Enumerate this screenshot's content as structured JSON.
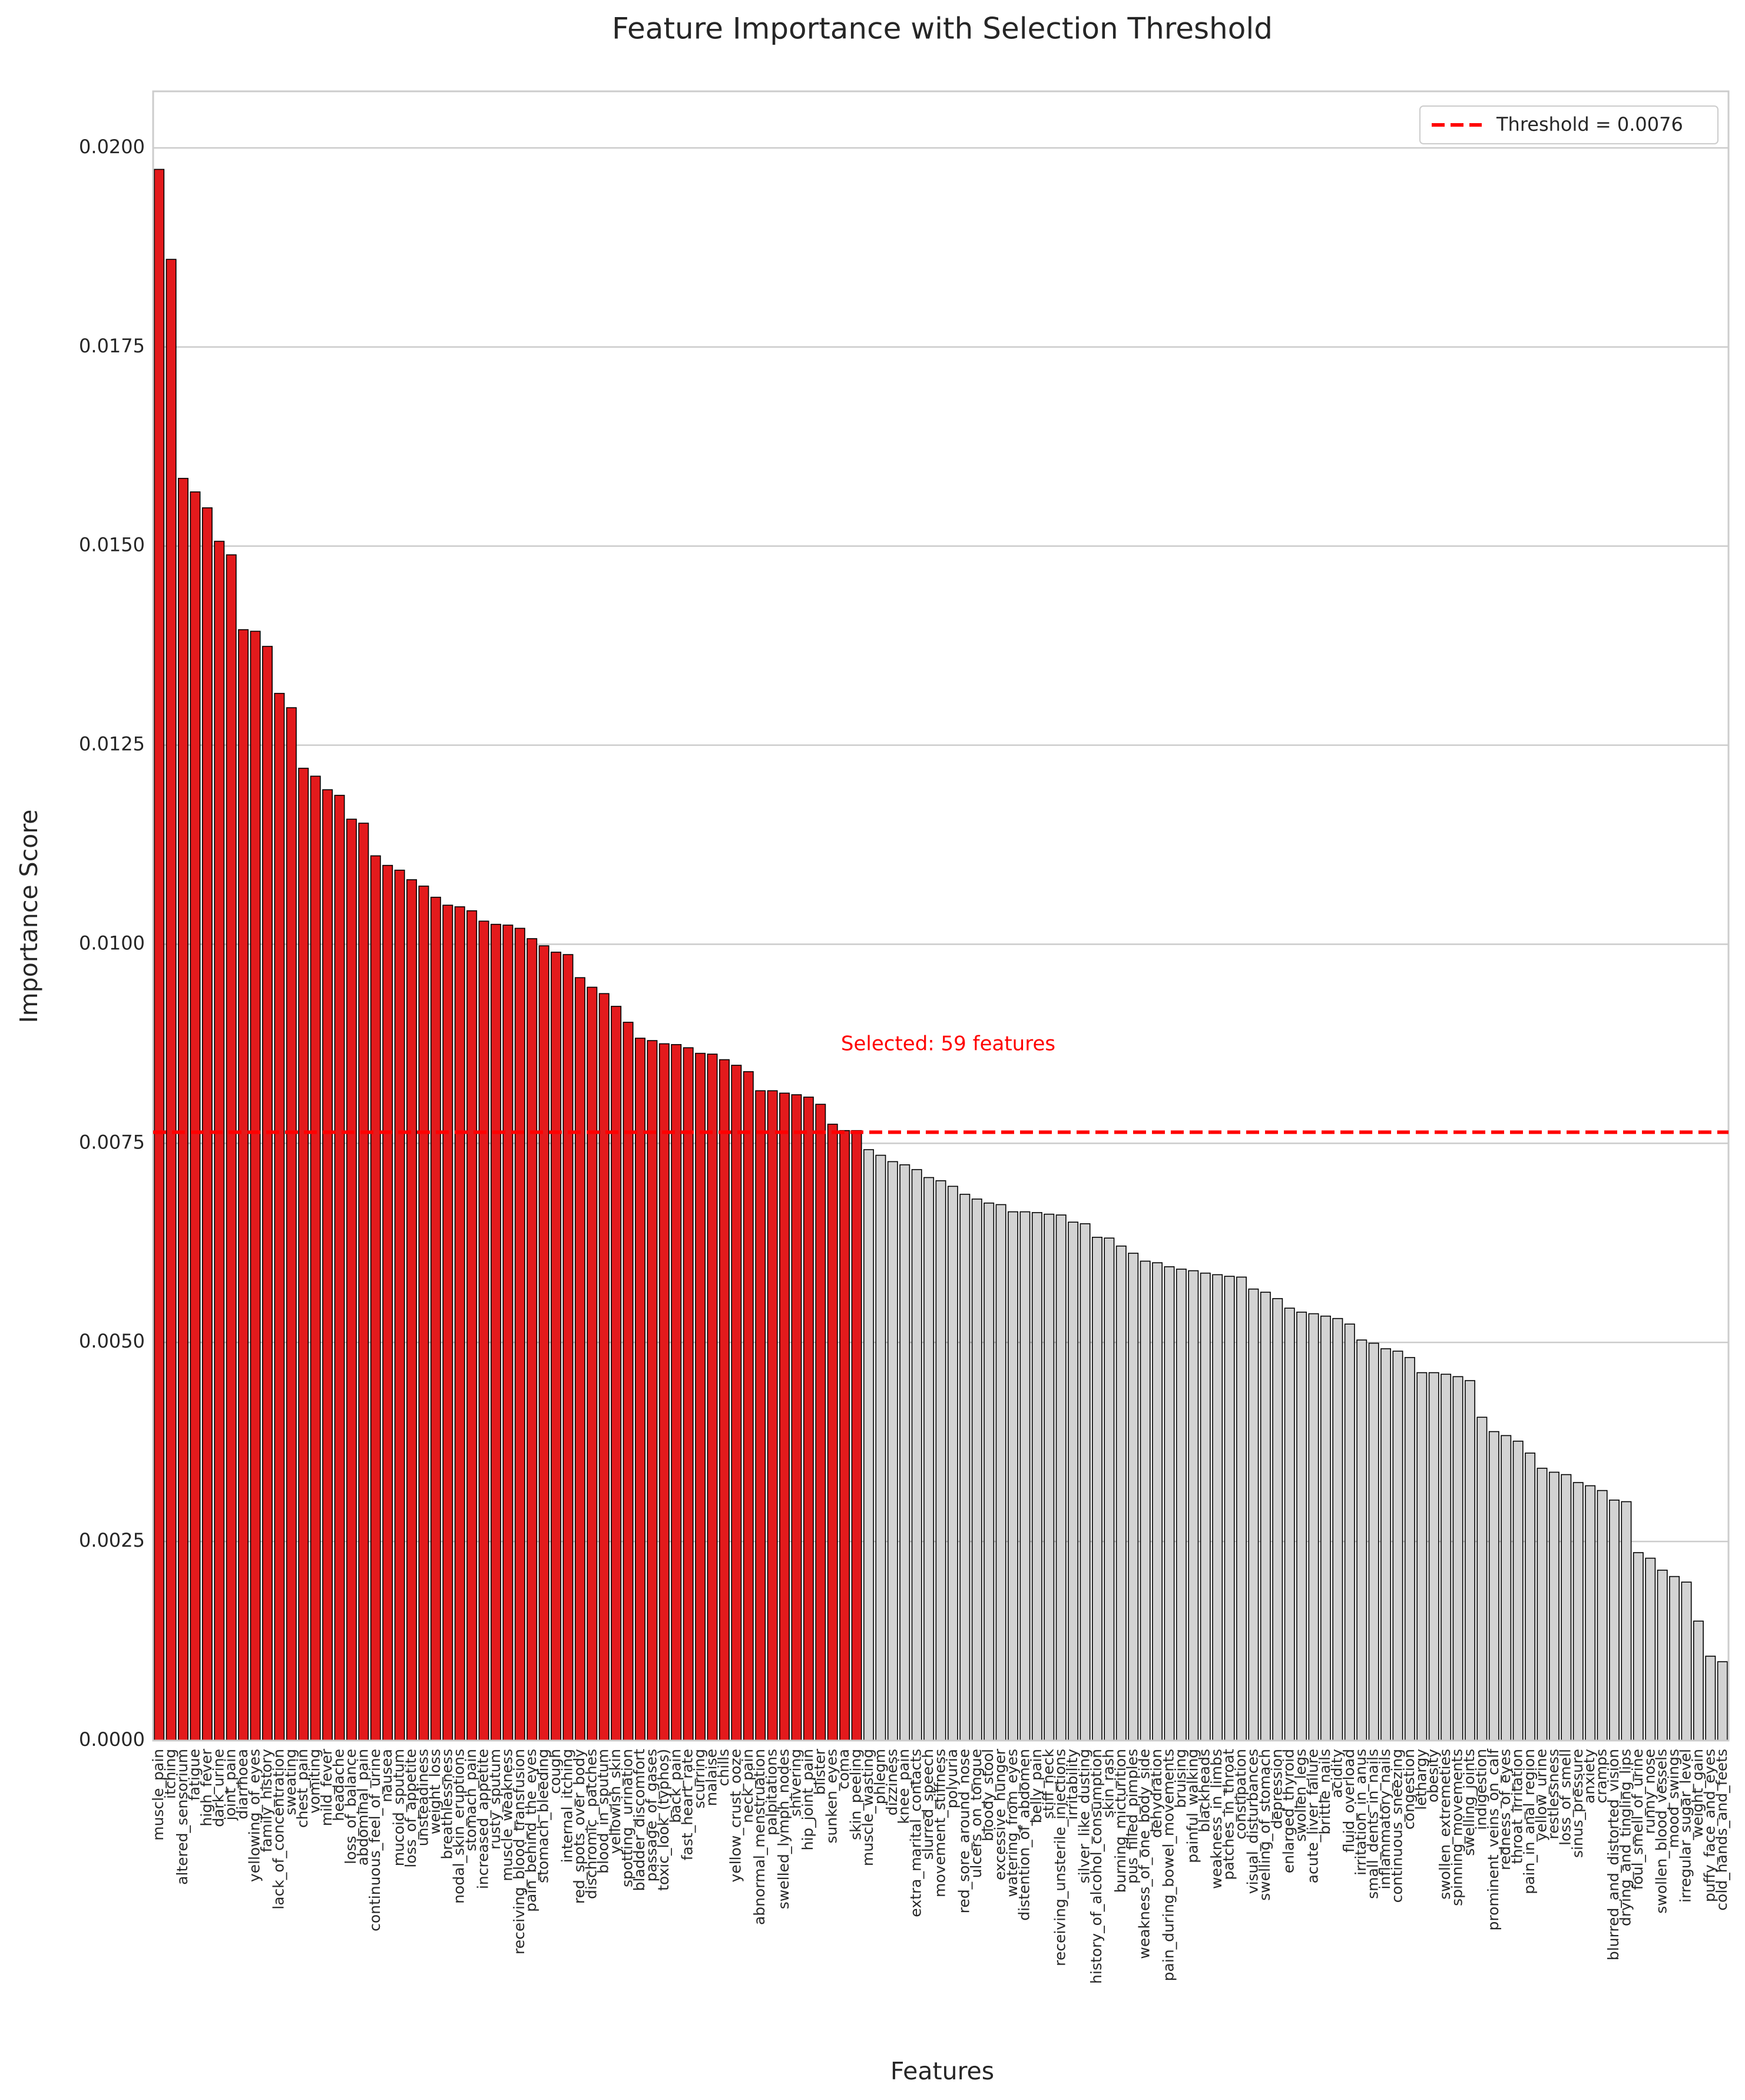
{
  "chart_data": {
    "type": "bar",
    "title": "Feature Importance with Selection Threshold",
    "xlabel": "Features",
    "ylabel": "Importance Score",
    "categories": [
      "muscle_pain",
      "itching",
      "altered_sensorium",
      "fatigue",
      "high_fever",
      "dark_urine",
      "joint_pain",
      "diarrhoea",
      "yellowing_of_eyes",
      "family_history",
      "lack_of_concentration",
      "sweating",
      "chest_pain",
      "vomiting",
      "mild_fever",
      "headache",
      "loss_of_balance",
      "abdominal_pain",
      "continuous_feel_of_urine",
      "nausea",
      "mucoid_sputum",
      "loss_of_appetite",
      "unsteadiness",
      "weight_loss",
      "breathlessness",
      "nodal_skin_eruptions",
      "stomach_pain",
      "increased_appetite",
      "rusty_sputum",
      "muscle_weakness",
      "receiving_blood_transfusion",
      "pain_behind_the_eyes",
      "stomach_bleeding",
      "cough",
      "internal_itching",
      "red_spots_over_body",
      "dischromic _patches",
      "blood_in_sputum",
      "yellowish_skin",
      "spotting_ urination",
      "bladder_discomfort",
      "passage_of_gases",
      "toxic_look_(typhos)",
      "back_pain",
      "fast_heart_rate",
      "scurring",
      "malaise",
      "chills",
      "yellow_crust_ooze",
      "neck_pain",
      "abnormal_menstruation",
      "palpitations",
      "swelled_lymph_nodes",
      "shivering",
      "hip_joint_pain",
      "blister",
      "sunken_eyes",
      "coma",
      "skin_peeling",
      "muscle_wasting",
      "phlegm",
      "dizziness",
      "knee_pain",
      "extra_marital_contacts",
      "slurred_speech",
      "movement_stiffness",
      "polyuria",
      "red_sore_around_nose",
      "ulcers_on_tongue",
      "bloody_stool",
      "excessive_hunger",
      "watering_from_eyes",
      "distention_of_abdomen",
      "belly_pain",
      "stiff_neck",
      "receiving_unsterile_injections",
      "irritability",
      "silver_like_dusting",
      "history_of_alcohol_consumption",
      "skin_rash",
      "burning_micturition",
      "pus_filled_pimples",
      "weakness_of_one_body_side",
      "dehydration",
      "pain_during_bowel_movements",
      "bruising",
      "painful_walking",
      "blackheads",
      "weakness_in_limbs",
      "patches_in_throat",
      "constipation",
      "visual_disturbances",
      "swelling_of_stomach",
      "depression",
      "enlarged_thyroid",
      "swollen_legs",
      "acute_liver_failure",
      "brittle_nails",
      "acidity",
      "fluid_overload",
      "irritation_in_anus",
      "small_dents_in_nails",
      "inflammatory_nails",
      "continuous_sneezing",
      "congestion",
      "lethargy",
      "obesity",
      "swollen_extremeties",
      "spinning_movements",
      "swelling_joints",
      "indigestion",
      "prominent_veins_on_calf",
      "redness_of_eyes",
      "throat_irritation",
      "pain_in_anal_region",
      "yellow_urine",
      "restlessness",
      "loss_of_smell",
      "sinus_pressure",
      "anxiety",
      "cramps",
      "blurred_and_distorted_vision",
      "drying_and_tingling_lips",
      "foul_smell_of_urine",
      "runny_nose",
      "swollen_blood_vessels",
      "mood_swings",
      "irregular_sugar_level",
      "weight_gain",
      "puffy_face_and_eyes",
      "cold_hands_and_feets"
    ],
    "values": [
      0.01973,
      0.0186,
      0.01585,
      0.01568,
      0.01548,
      0.01506,
      0.01489,
      0.01395,
      0.01393,
      0.01374,
      0.01315,
      0.01297,
      0.01221,
      0.01211,
      0.01194,
      0.01187,
      0.01157,
      0.01152,
      0.01111,
      0.01099,
      0.01093,
      0.01081,
      0.01073,
      0.01059,
      0.01049,
      0.01047,
      0.01042,
      0.01029,
      0.01025,
      0.01024,
      0.0102,
      0.01007,
      0.00998,
      0.0099,
      0.00987,
      0.00958,
      0.00946,
      0.00938,
      0.00922,
      0.00902,
      0.00882,
      0.00879,
      0.00875,
      0.00874,
      0.0087,
      0.00863,
      0.00862,
      0.00855,
      0.00848,
      0.0084,
      0.00816,
      0.00816,
      0.00813,
      0.00811,
      0.00808,
      0.00799,
      0.00774,
      0.00766,
      0.00766,
      0.00742,
      0.00735,
      0.00727,
      0.00723,
      0.00717,
      0.00707,
      0.00703,
      0.00696,
      0.00686,
      0.0068,
      0.00675,
      0.00673,
      0.00664,
      0.00664,
      0.00663,
      0.00661,
      0.0066,
      0.00651,
      0.00649,
      0.00632,
      0.00631,
      0.00621,
      0.00612,
      0.00602,
      0.006,
      0.00595,
      0.00592,
      0.0059,
      0.00587,
      0.00585,
      0.00583,
      0.00582,
      0.00567,
      0.00563,
      0.00555,
      0.00543,
      0.00538,
      0.00536,
      0.00533,
      0.0053,
      0.00523,
      0.00503,
      0.00499,
      0.00492,
      0.00489,
      0.00481,
      0.00462,
      0.00462,
      0.0046,
      0.00457,
      0.00452,
      0.00406,
      0.00388,
      0.00383,
      0.00376,
      0.00361,
      0.00342,
      0.00337,
      0.00334,
      0.00324,
      0.0032,
      0.00314,
      0.00302,
      0.003,
      0.00236,
      0.00229,
      0.00214,
      0.00206,
      0.00199,
      0.0015,
      0.00106,
      0.00099
    ],
    "colors": {
      "selected": "#e31a1c",
      "other": "#d3d3d3"
    },
    "threshold": {
      "value": 0.00764,
      "label": "Threshold = 0.0076",
      "color": "#ff0000"
    },
    "annotation": "Selected: 59 features",
    "ylim": [
      0,
      0.02071
    ],
    "yticks": [
      {
        "value": 0,
        "label": "0.0000"
      },
      {
        "value": 0.0025,
        "label": "0.0025"
      },
      {
        "value": 0.005,
        "label": "0.0050"
      },
      {
        "value": 0.0075,
        "label": "0.0075"
      },
      {
        "value": 0.01,
        "label": "0.0100"
      },
      {
        "value": 0.0125,
        "label": "0.0125"
      },
      {
        "value": 0.015,
        "label": "0.0150"
      },
      {
        "value": 0.0175,
        "label": "0.0175"
      },
      {
        "value": 0.02,
        "label": "0.0200"
      }
    ],
    "grid": true,
    "legend": "upper right"
  }
}
